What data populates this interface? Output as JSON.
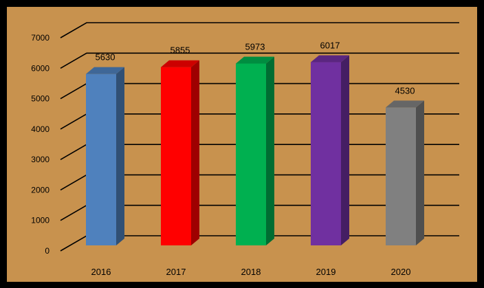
{
  "chart_data": {
    "type": "bar",
    "categories": [
      "2016",
      "2017",
      "2018",
      "2019",
      "2020"
    ],
    "values": [
      5630,
      5855,
      5973,
      6017,
      4530
    ],
    "data_labels": [
      "5630",
      "5855",
      "5973",
      "6017",
      "4530"
    ],
    "bar_colors": [
      "#4f81bd",
      "#ff0000",
      "#00b050",
      "#7030a0",
      "#808080"
    ],
    "ylim": [
      0,
      7000
    ],
    "yticks": [
      "0",
      "1000",
      "2000",
      "3000",
      "4000",
      "5000",
      "6000",
      "7000"
    ],
    "grid": true,
    "legend": "none",
    "title": "",
    "xlabel": "",
    "ylabel": ""
  },
  "colors": {
    "background": "#c8924e",
    "frame": "#000000"
  }
}
